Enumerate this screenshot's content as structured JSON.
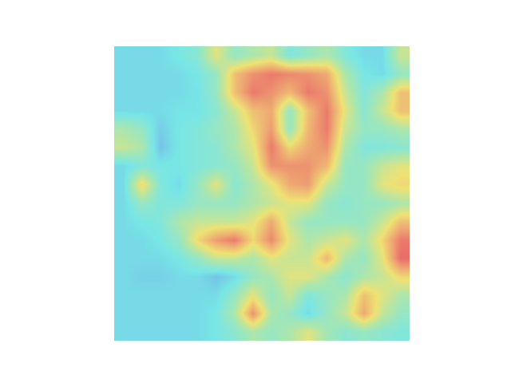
{
  "chart_data": {
    "type": "heatmap",
    "tick_labels": false,
    "xlim": [
      -0.5,
      15.5
    ],
    "ylim": [
      15.5,
      -0.5
    ],
    "zlim": [
      0,
      1
    ],
    "z": [
      [
        0.35,
        0.35,
        0.35,
        0.38,
        0.42,
        0.6,
        0.45,
        0.5,
        0.55,
        0.4,
        0.45,
        0.5,
        0.4,
        0.35,
        0.35,
        0.55
      ],
      [
        0.35,
        0.35,
        0.35,
        0.35,
        0.38,
        0.45,
        0.7,
        0.8,
        0.85,
        0.82,
        0.8,
        0.75,
        0.5,
        0.38,
        0.35,
        0.45
      ],
      [
        0.35,
        0.35,
        0.35,
        0.35,
        0.37,
        0.45,
        0.7,
        0.85,
        0.8,
        0.72,
        0.85,
        0.8,
        0.55,
        0.4,
        0.5,
        0.7
      ],
      [
        0.35,
        0.35,
        0.35,
        0.37,
        0.37,
        0.42,
        0.55,
        0.7,
        0.75,
        0.45,
        0.7,
        0.85,
        0.6,
        0.42,
        0.55,
        0.7
      ],
      [
        0.5,
        0.45,
        0.32,
        0.38,
        0.4,
        0.45,
        0.5,
        0.65,
        0.78,
        0.45,
        0.72,
        0.85,
        0.55,
        0.45,
        0.45,
        0.5
      ],
      [
        0.55,
        0.5,
        0.3,
        0.38,
        0.4,
        0.42,
        0.5,
        0.6,
        0.85,
        0.65,
        0.75,
        0.8,
        0.5,
        0.4,
        0.4,
        0.42
      ],
      [
        0.35,
        0.4,
        0.38,
        0.38,
        0.4,
        0.42,
        0.45,
        0.55,
        0.8,
        0.8,
        0.8,
        0.72,
        0.45,
        0.45,
        0.55,
        0.6
      ],
      [
        0.35,
        0.65,
        0.4,
        0.35,
        0.45,
        0.6,
        0.42,
        0.5,
        0.6,
        0.75,
        0.78,
        0.55,
        0.45,
        0.45,
        0.6,
        0.65
      ],
      [
        0.35,
        0.45,
        0.4,
        0.4,
        0.45,
        0.45,
        0.45,
        0.5,
        0.55,
        0.6,
        0.6,
        0.45,
        0.42,
        0.45,
        0.45,
        0.5
      ],
      [
        0.35,
        0.38,
        0.4,
        0.5,
        0.55,
        0.55,
        0.55,
        0.6,
        0.75,
        0.55,
        0.45,
        0.45,
        0.45,
        0.45,
        0.55,
        0.7
      ],
      [
        0.35,
        0.35,
        0.38,
        0.45,
        0.65,
        0.78,
        0.85,
        0.65,
        0.82,
        0.6,
        0.5,
        0.55,
        0.6,
        0.5,
        0.65,
        0.85
      ],
      [
        0.35,
        0.35,
        0.35,
        0.38,
        0.45,
        0.55,
        0.55,
        0.5,
        0.6,
        0.55,
        0.55,
        0.72,
        0.5,
        0.45,
        0.6,
        0.88
      ],
      [
        0.35,
        0.33,
        0.33,
        0.35,
        0.35,
        0.3,
        0.35,
        0.45,
        0.5,
        0.6,
        0.6,
        0.5,
        0.42,
        0.5,
        0.55,
        0.65
      ],
      [
        0.35,
        0.35,
        0.35,
        0.35,
        0.35,
        0.35,
        0.45,
        0.6,
        0.45,
        0.55,
        0.4,
        0.45,
        0.5,
        0.7,
        0.6,
        0.5
      ],
      [
        0.35,
        0.35,
        0.35,
        0.35,
        0.35,
        0.38,
        0.5,
        0.8,
        0.5,
        0.45,
        0.35,
        0.45,
        0.55,
        0.75,
        0.55,
        0.45
      ],
      [
        0.35,
        0.35,
        0.35,
        0.35,
        0.35,
        0.38,
        0.42,
        0.5,
        0.45,
        0.5,
        0.6,
        0.48,
        0.42,
        0.45,
        0.42,
        0.4
      ]
    ]
  }
}
